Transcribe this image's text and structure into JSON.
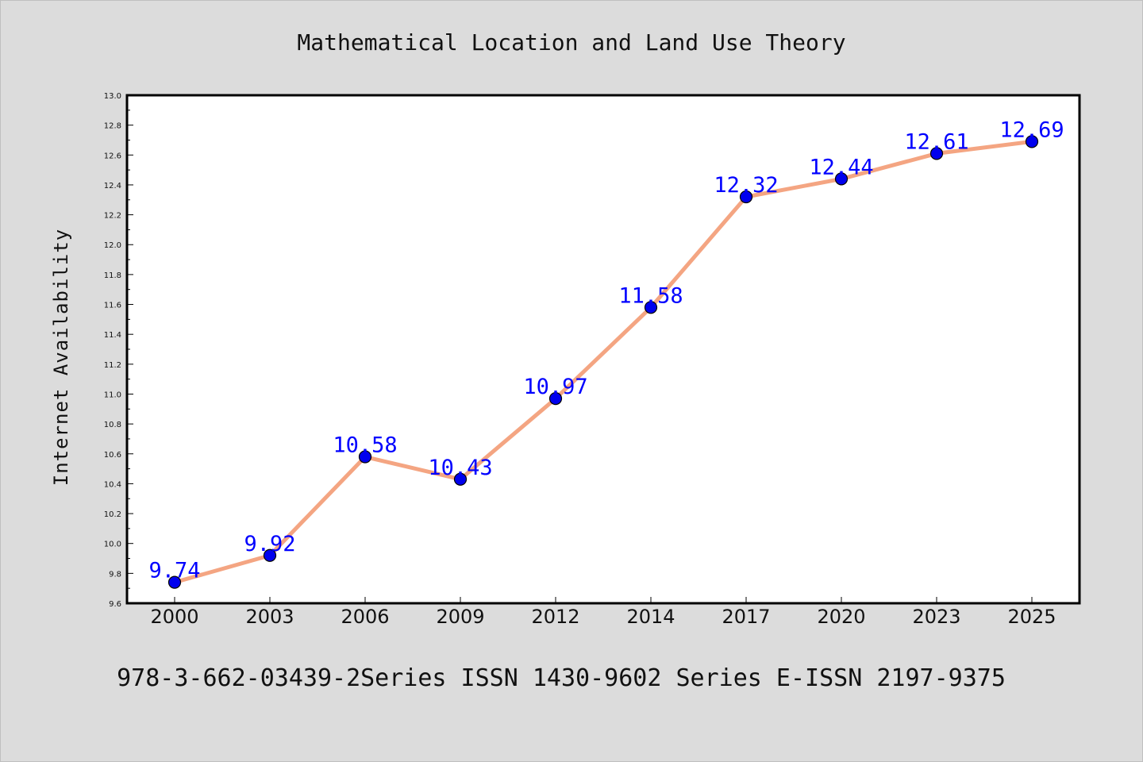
{
  "chart_data": {
    "type": "line",
    "title": "Mathematical Location and Land Use Theory",
    "xlabel": "",
    "ylabel": "Internet Availability",
    "categories": [
      "2000",
      "2003",
      "2006",
      "2009",
      "2012",
      "2014",
      "2017",
      "2020",
      "2023",
      "2025"
    ],
    "series": [
      {
        "values": [
          9.74,
          9.92,
          10.58,
          10.43,
          10.97,
          11.58,
          12.32,
          12.44,
          12.61,
          12.69
        ],
        "labels": [
          "9.74",
          "9.92",
          "10.58",
          "10.43",
          "10.97",
          "11.58",
          "12.32",
          "12.44",
          "12.61",
          "12.69"
        ]
      }
    ],
    "ylim": [
      9.6,
      13.0
    ],
    "yticks": [
      "9.6",
      "9.8",
      "10.0",
      "10.2",
      "10.4",
      "10.6",
      "10.8",
      "11.0",
      "11.2",
      "11.4",
      "11.6",
      "11.8",
      "12.0",
      "12.2",
      "12.4",
      "12.6",
      "12.8",
      "13.0"
    ],
    "grid": false,
    "data_labels": true
  },
  "footer": "978-3-662-03439-2Series ISSN 1430-9602 Series E-ISSN 2197-9375",
  "colors": {
    "background": "#dcdcdc",
    "plot_area": "#ffffff",
    "line": "#f4a582",
    "marker": "#0000ee",
    "label": "#0000ff"
  }
}
